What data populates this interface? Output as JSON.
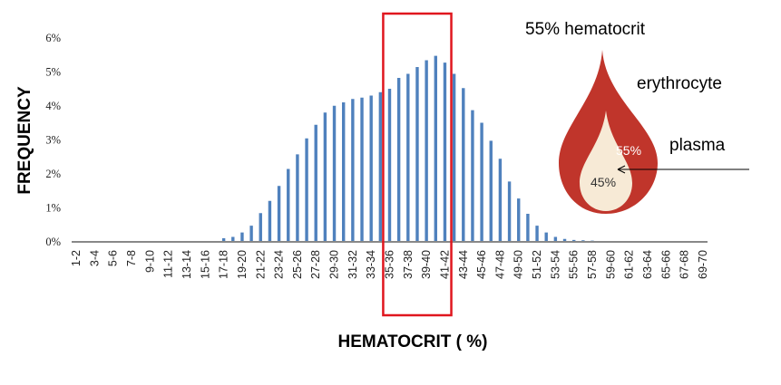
{
  "chart_data": {
    "type": "bar",
    "title": "",
    "xlabel": "HEMATOCRIT ( %)",
    "ylabel": "FREQUENCY",
    "ylim": [
      0,
      6
    ],
    "yticks": [
      "0%",
      "1%",
      "2%",
      "3%",
      "4%",
      "5%",
      "6%"
    ],
    "grid": false,
    "legend": "none",
    "bar_color": "#4F81BD",
    "highlight": {
      "from": "35-36",
      "to": "41-42",
      "color": "#E0161E"
    },
    "categories": [
      "1-2",
      "2-3",
      "3-4",
      "4-5",
      "5-6",
      "6-7",
      "7-8",
      "8-9",
      "9-10",
      "10-11",
      "11-12",
      "12-13",
      "13-14",
      "14-15",
      "15-16",
      "16-17",
      "17-18",
      "18-19",
      "19-20",
      "20-21",
      "21-22",
      "22-23",
      "23-24",
      "24-25",
      "25-26",
      "26-27",
      "27-28",
      "28-29",
      "29-30",
      "30-31",
      "31-32",
      "32-33",
      "33-34",
      "34-35",
      "35-36",
      "36-37",
      "37-38",
      "38-39",
      "39-40",
      "40-41",
      "41-42",
      "42-43",
      "43-44",
      "44-45",
      "45-46",
      "46-47",
      "47-48",
      "48-49",
      "49-50",
      "50-51",
      "51-52",
      "52-53",
      "53-54",
      "54-55",
      "55-56",
      "56-57",
      "57-58",
      "58-59",
      "59-60",
      "60-61",
      "61-62",
      "62-63",
      "63-64",
      "64-65",
      "65-66",
      "66-67",
      "67-68",
      "68-69",
      "69-70"
    ],
    "tick_labels": [
      "1-2",
      "3-4",
      "5-6",
      "7-8",
      "9-10",
      "11-12",
      "13-14",
      "15-16",
      "17-18",
      "19-20",
      "21-22",
      "23-24",
      "25-26",
      "27-28",
      "29-30",
      "31-32",
      "33-34",
      "35-36",
      "37-38",
      "39-40",
      "41-42",
      "43-44",
      "45-46",
      "47-48",
      "49-50",
      "51-52",
      "53-54",
      "55-56",
      "57-58",
      "59-60",
      "61-62",
      "63-64",
      "65-66",
      "67-68",
      "69-70"
    ],
    "values": [
      0,
      0,
      0,
      0,
      0,
      0,
      0,
      0,
      0,
      0,
      0,
      0,
      0,
      0,
      0,
      0,
      0.08,
      0.12,
      0.25,
      0.45,
      0.82,
      1.18,
      1.62,
      2.12,
      2.55,
      3.02,
      3.42,
      3.78,
      3.98,
      4.08,
      4.18,
      4.22,
      4.28,
      4.38,
      4.48,
      4.8,
      4.92,
      5.12,
      5.32,
      5.45,
      5.25,
      4.92,
      4.5,
      3.85,
      3.48,
      2.95,
      2.42,
      1.75,
      1.25,
      0.8,
      0.45,
      0.25,
      0.12,
      0.06,
      0.03,
      0.02,
      0.01,
      0,
      0,
      0,
      0,
      0,
      0,
      0,
      0,
      0,
      0,
      0,
      0
    ]
  },
  "annotation": {
    "title": "55% hematocrit",
    "erythrocyte_label": "erythrocyte",
    "plasma_label": "plasma",
    "red_pct": "55%",
    "plasma_pct": "45%",
    "colors": {
      "erythrocyte": "#C0352B",
      "plasma": "#F7EAD6"
    }
  }
}
